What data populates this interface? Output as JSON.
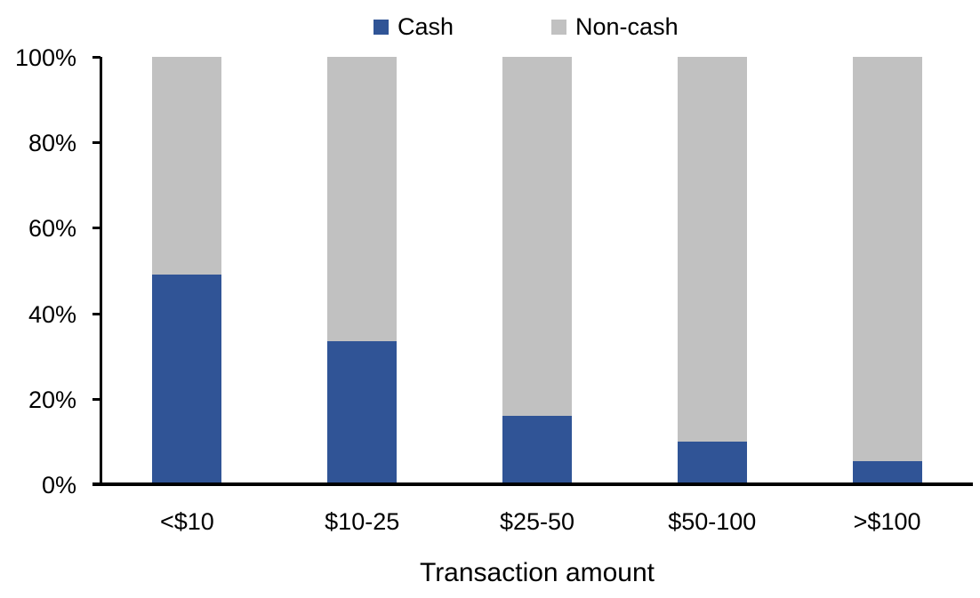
{
  "chart_data": {
    "type": "bar",
    "stacked": true,
    "units": "percent",
    "title": "",
    "xlabel": "Transaction amount",
    "ylabel": "",
    "categories": [
      "<$10",
      "$10-25",
      "$25-50",
      "$50-100",
      ">$100"
    ],
    "series": [
      {
        "name": "Cash",
        "color": "#305496",
        "values": [
          49,
          33.5,
          16,
          10,
          5.5
        ]
      },
      {
        "name": "Non-cash",
        "color": "#C1C1C1",
        "values": [
          51,
          66.5,
          84,
          90,
          94.5
        ]
      }
    ],
    "ylim": [
      0,
      100
    ],
    "yticks": [
      {
        "value": 0,
        "label": "0%"
      },
      {
        "value": 20,
        "label": "20%"
      },
      {
        "value": 40,
        "label": "40%"
      },
      {
        "value": 60,
        "label": "60%"
      },
      {
        "value": 80,
        "label": "80%"
      },
      {
        "value": 100,
        "label": "100%"
      }
    ],
    "grid": false,
    "legend_position": "top",
    "axis_color": "#000000",
    "background_color": "#FFFFFF"
  }
}
